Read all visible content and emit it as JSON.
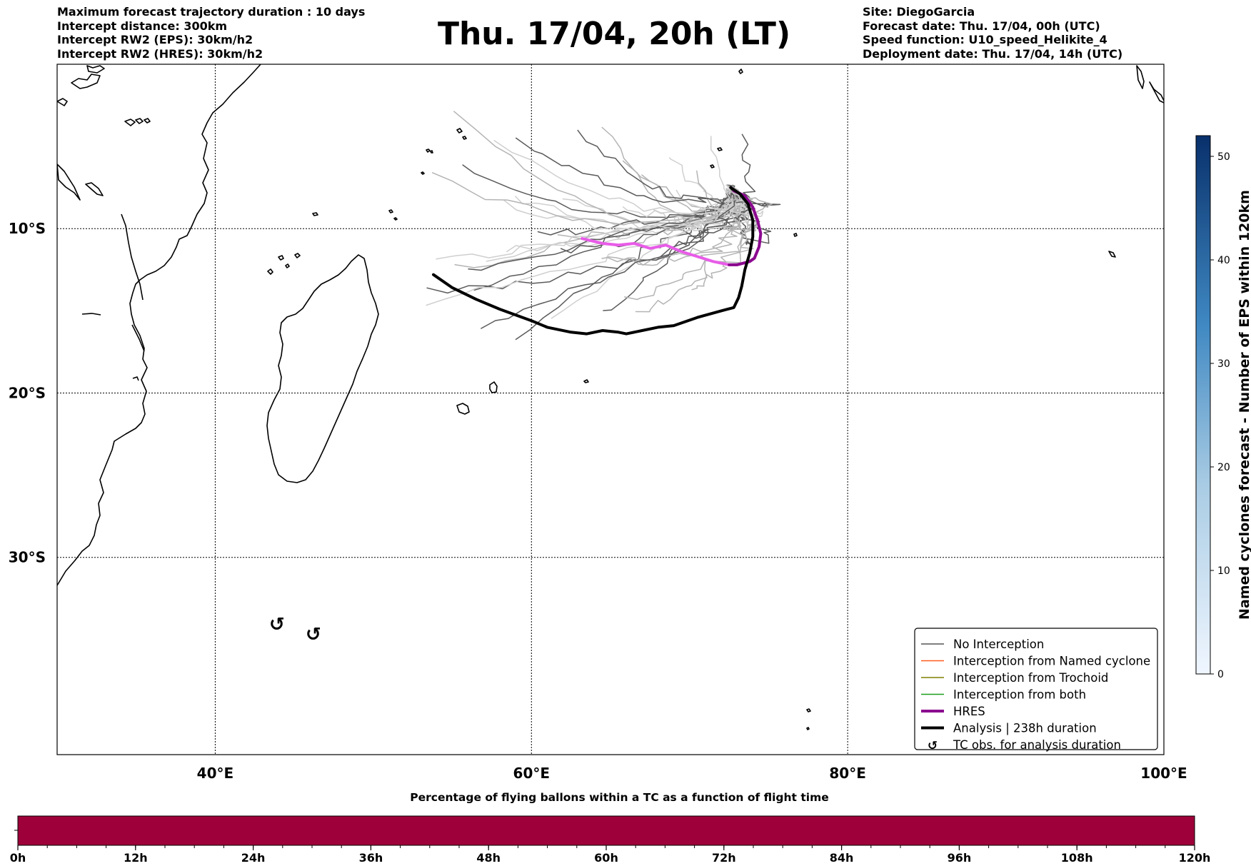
{
  "header_left": [
    "Maximum forecast trajectory duration : 10 days",
    "Intercept distance: 300km",
    "Intercept RW2 (EPS):  30km/h2",
    "Intercept RW2 (HRES): 30km/h2"
  ],
  "header_right": [
    "Site: DiegoGarcia",
    "Forecast date: Thu. 17/04, 00h (UTC)",
    "Speed function: U10_speed_Helikite_4",
    "Deployment date: Thu. 17/04, 14h (UTC)"
  ],
  "title": "Thu. 17/04, 20h (LT)",
  "map": {
    "lon_ticks": [
      {
        "lon": 40,
        "label": "40°E"
      },
      {
        "lon": 60,
        "label": "60°E"
      },
      {
        "lon": 80,
        "label": "80°E"
      },
      {
        "lon": 100,
        "label": "100°E"
      }
    ],
    "lat_ticks": [
      {
        "lat": -10,
        "label": "10°S"
      },
      {
        "lat": -20,
        "label": "20°S"
      },
      {
        "lat": -30,
        "label": "30°S"
      }
    ],
    "extent": {
      "lon_min": 30,
      "lon_max": 100,
      "lat_max": 0,
      "lat_min": -42
    }
  },
  "legend": [
    {
      "label": "No Interception",
      "color": "#555555",
      "style": "thin"
    },
    {
      "label": "Interception from Named cyclone",
      "color": "#ff5a1e",
      "style": "thin"
    },
    {
      "label": "Interception from Trochoid",
      "color": "#808000",
      "style": "thin"
    },
    {
      "label": "Interception from both",
      "color": "#1a9e1a",
      "style": "thin"
    },
    {
      "label": "HRES",
      "color": "#8b0a8f",
      "style": "thick"
    },
    {
      "label": "Analysis | 238h duration",
      "color": "#000000",
      "style": "thick"
    },
    {
      "label": "TC obs. for analysis duration",
      "color": "#000000",
      "style": "symbol"
    }
  ],
  "right_colorbar": {
    "label": "Named cyclones forecast - Number of EPS within 120km",
    "min": 0,
    "max": 52,
    "ticks": [
      0,
      10,
      20,
      30,
      40,
      50
    ],
    "color_low": "#f0f6ff",
    "color_high": "#08306b"
  },
  "bottom_colorbar": {
    "title": "Percentage of flying ballons within a TC as a function of flight time",
    "ticks": [
      "0h",
      "12h",
      "24h",
      "36h",
      "48h",
      "60h",
      "72h",
      "84h",
      "96h",
      "108h",
      "120h"
    ],
    "max_hours": 120,
    "fill_color": "#9e0039"
  },
  "chart_data": {
    "type": "map-trajectories",
    "analysis_track": {
      "name": "Analysis | 238h duration",
      "lon": [
        72.6,
        73.2,
        73.7,
        74.0,
        74.0,
        73.8,
        73.5,
        73.3,
        73.1,
        72.8,
        72.0,
        70.5,
        69.0,
        68.0,
        67.0,
        66.0,
        65.5,
        64.5,
        63.5,
        62.5,
        61.0,
        60.0,
        58.0,
        56.5,
        55.0,
        53.8
      ],
      "lat": [
        -7.5,
        -7.9,
        -8.5,
        -9.5,
        -10.5,
        -11.5,
        -12.5,
        -13.5,
        -14.2,
        -14.8,
        -15.0,
        -15.4,
        -15.9,
        -16.0,
        -16.2,
        -16.4,
        -16.3,
        -16.2,
        -16.4,
        -16.3,
        -16.0,
        -15.6,
        -14.9,
        -14.3,
        -13.6,
        -12.8
      ]
    },
    "hres_track": {
      "name": "HRES",
      "lon": [
        72.8,
        73.5,
        74.0,
        74.3,
        74.5,
        74.4,
        74.1,
        73.8,
        73.0,
        72.5,
        71.5,
        70.5,
        69.5,
        68.5,
        67.5,
        66.5,
        65.5,
        64.5,
        63.2
      ],
      "lat": [
        -7.7,
        -8.0,
        -8.7,
        -9.5,
        -10.3,
        -11.1,
        -11.8,
        -12.0,
        -12.2,
        -12.2,
        -12.0,
        -11.7,
        -11.4,
        -11.0,
        -11.2,
        -10.9,
        -11.0,
        -10.9,
        -10.6
      ]
    },
    "tc_observations": [
      {
        "lon": 43.9,
        "lat": -34.1
      },
      {
        "lon": 46.2,
        "lat": -34.7
      }
    ]
  }
}
